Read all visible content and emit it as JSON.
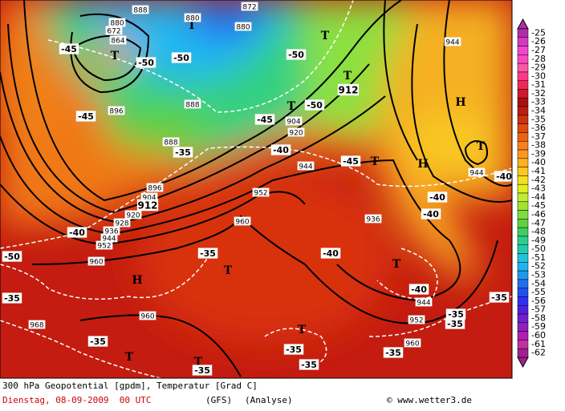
{
  "map": {
    "pressure_centers": [
      "H",
      "H",
      "H",
      "T",
      "T",
      "T",
      "T",
      "T",
      "T",
      "T",
      "T",
      "T",
      "T",
      "T",
      "T"
    ],
    "temperature_labels": [
      "-40",
      "-40",
      "-40",
      "-40",
      "-40",
      "-40",
      "-40",
      "-45",
      "-45",
      "-45",
      "-45",
      "-50",
      "-50",
      "-50",
      "-50",
      "-50",
      "-35",
      "-35",
      "-35",
      "-35",
      "-35",
      "-35",
      "-35",
      "-35",
      "-35",
      "-35",
      "-35"
    ],
    "height_labels": [
      "880",
      "880",
      "880",
      "888",
      "888",
      "888",
      "872",
      "864",
      "672",
      "896",
      "896",
      "904",
      "904",
      "912",
      "912",
      "920",
      "920",
      "928",
      "936",
      "936",
      "944",
      "944",
      "944",
      "944",
      "944",
      "952",
      "952",
      "952",
      "960",
      "960",
      "960",
      "968",
      "960"
    ],
    "legend": {
      "labels": [
        "-25",
        "-26",
        "-27",
        "-28",
        "-29",
        "-30",
        "-31",
        "-32",
        "-33",
        "-34",
        "-35",
        "-36",
        "-37",
        "-38",
        "-39",
        "-40",
        "-41",
        "-42",
        "-43",
        "-44",
        "-45",
        "-46",
        "-47",
        "-48",
        "-49",
        "-50",
        "-51",
        "-52",
        "-53",
        "-54",
        "-55",
        "-56",
        "-57",
        "-58",
        "-59",
        "-60",
        "-61",
        "-62"
      ],
      "colors": [
        "#b02ca8",
        "#d838c0",
        "#f048d0",
        "#ff48c0",
        "#ff58a8",
        "#ff3888",
        "#f02858",
        "#d01828",
        "#a81010",
        "#bc1c10",
        "#d03010",
        "#e04c10",
        "#ec6410",
        "#f88020",
        "#ff9820",
        "#ffb020",
        "#ffc820",
        "#f4e020",
        "#e0f020",
        "#c0ec30",
        "#a0e430",
        "#80dc40",
        "#60d040",
        "#40cc60",
        "#30cc90",
        "#20ccb0",
        "#20c4d8",
        "#20b4f0",
        "#2098f0",
        "#2070f0",
        "#2050f0",
        "#3030f0",
        "#5020e0",
        "#7020d0",
        "#9020c0",
        "#b020b0",
        "#c030a0",
        "#a02090"
      ]
    },
    "caption": {
      "line1": "300 hPa Geopotential [gpdm], Temperatur [Grad C]",
      "date": "Dienstag, 08-09-2009  00 UTC",
      "model": "(GFS)",
      "run": "(Analyse)",
      "credit": "© www.wetter3.de"
    }
  }
}
